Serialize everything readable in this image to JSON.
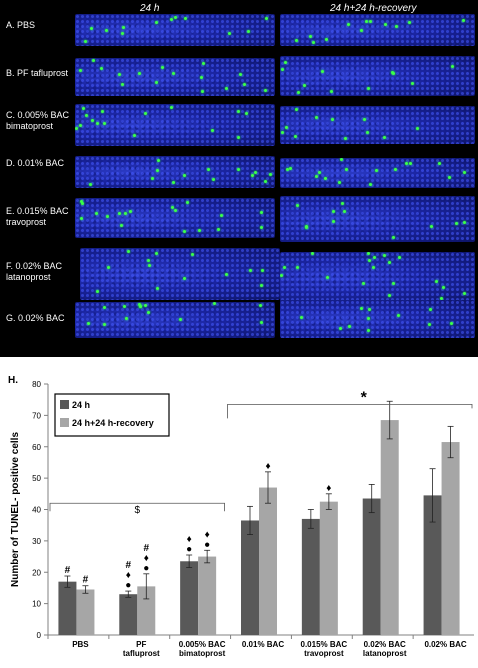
{
  "micrographs": {
    "column_headers": [
      "24 h",
      "24 h+24 h-recovery"
    ],
    "rows": [
      {
        "label": "A. PBS"
      },
      {
        "label": "B. PF tafluprost"
      },
      {
        "label": "C. 0.005% BAC\nbimatoprost"
      },
      {
        "label": "D. 0.01% BAC"
      },
      {
        "label": "E. 0.015% BAC\ntravoprost"
      },
      {
        "label": "F. 0.02% BAC\nlatanoprost"
      },
      {
        "label": "G. 0.02% BAC"
      }
    ],
    "colors": {
      "nuclei": "#1a24a0",
      "tunel": "#3cff4a",
      "background": "#000000"
    }
  },
  "chart_data": {
    "type": "bar",
    "panel_label": "H.",
    "ylabel": "Number of TUNEL- positive cells",
    "ylim": [
      0,
      80
    ],
    "yticks": [
      0,
      10,
      20,
      30,
      40,
      50,
      60,
      70,
      80
    ],
    "categories": [
      "PBS",
      "PF\ntafluprost",
      "0.005% BAC\nbimatoprost",
      "0.01% BAC",
      "0.015% BAC\ntravoprost",
      "0.02% BAC\nlatanoprost",
      "0.02% BAC"
    ],
    "series": [
      {
        "name": "24 h",
        "color": "#595959",
        "values": [
          17,
          13,
          23.5,
          36.5,
          37,
          43.5,
          44.5
        ],
        "errors": [
          1.8,
          1.0,
          2.0,
          4.5,
          3.0,
          4.5,
          8.5
        ]
      },
      {
        "name": "24 h+24 h-recovery",
        "color": "#a6a6a6",
        "values": [
          14.5,
          15.5,
          25,
          47,
          42.5,
          68.5,
          61.5
        ],
        "errors": [
          1.2,
          4.0,
          2.0,
          5.0,
          2.5,
          6.0,
          5.0
        ]
      }
    ],
    "annotations": {
      "hash": "#",
      "diamond": "♦",
      "dot": "●",
      "dollar": "$",
      "star": "*"
    },
    "marks": [
      {
        "cat": 0,
        "series": 0,
        "symbols": [
          "#"
        ]
      },
      {
        "cat": 0,
        "series": 1,
        "symbols": [
          "#"
        ]
      },
      {
        "cat": 1,
        "series": 0,
        "symbols": [
          "#",
          "♦",
          "●"
        ]
      },
      {
        "cat": 1,
        "series": 1,
        "symbols": [
          "#",
          "♦",
          "●"
        ]
      },
      {
        "cat": 2,
        "series": 0,
        "symbols": [
          "♦",
          "●"
        ]
      },
      {
        "cat": 2,
        "series": 1,
        "symbols": [
          "♦",
          "●"
        ]
      },
      {
        "cat": 3,
        "series": 1,
        "symbols": [
          "♦"
        ]
      },
      {
        "cat": 4,
        "series": 1,
        "symbols": [
          "♦"
        ]
      }
    ],
    "legend": "top-left"
  }
}
